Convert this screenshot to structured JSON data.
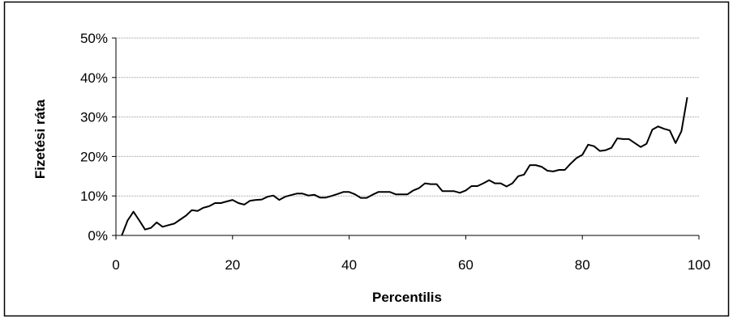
{
  "chart_data": {
    "type": "line",
    "title": "",
    "xlabel": "Percentilis",
    "ylabel": "Fizetési ráta",
    "xlim": [
      0,
      100
    ],
    "ylim": [
      0,
      50
    ],
    "x_ticks": [
      "0",
      "20",
      "40",
      "60",
      "80",
      "100"
    ],
    "y_ticks": [
      "0%",
      "10%",
      "20%",
      "30%",
      "40%",
      "50%"
    ],
    "grid": "horizontal dotted",
    "legend": "none",
    "colors": {
      "line": "#000000",
      "grid": "#999999",
      "axis": "#000000",
      "frame": "#000000"
    },
    "series": [
      {
        "x": [
          1,
          2,
          3,
          4,
          5,
          6,
          7,
          8,
          9,
          10,
          11,
          12,
          13,
          14,
          15,
          16,
          17,
          18,
          19,
          20,
          21,
          22,
          23,
          24,
          25,
          26,
          27,
          28,
          29,
          30,
          31,
          32,
          33,
          34,
          35,
          36,
          37,
          38,
          39,
          40,
          41,
          42,
          43,
          44,
          45,
          46,
          47,
          48,
          49,
          50,
          51,
          52,
          53,
          54,
          55,
          56,
          57,
          58,
          59,
          60,
          61,
          62,
          63,
          64,
          65,
          66,
          67,
          68,
          69,
          70,
          71,
          72,
          73,
          74,
          75,
          76,
          77,
          78,
          79,
          80,
          81,
          82,
          83,
          84,
          85,
          86,
          87,
          88,
          89,
          90,
          91,
          92,
          93,
          94,
          95,
          96,
          97,
          98
        ],
        "values": [
          0,
          3.8,
          6,
          3.8,
          1.5,
          1.9,
          3.3,
          2.2,
          2.6,
          3,
          4,
          5,
          6.4,
          6.2,
          7,
          7.4,
          8.2,
          8.2,
          8.6,
          9,
          8.2,
          7.8,
          8.8,
          9,
          9.1,
          9.8,
          10.1,
          9,
          9.8,
          10.2,
          10.6,
          10.6,
          10.1,
          10.3,
          9.6,
          9.6,
          10,
          10.5,
          11,
          11,
          10.4,
          9.5,
          9.5,
          10.3,
          11,
          11,
          11,
          10.4,
          10.4,
          10.4,
          11.4,
          12,
          13.2,
          13,
          13,
          11.2,
          11.2,
          11.2,
          10.8,
          11.4,
          12.5,
          12.5,
          13.2,
          14,
          13.2,
          13.2,
          12.4,
          13.2,
          15,
          15.4,
          17.8,
          17.8,
          17.4,
          16.4,
          16.2,
          16.6,
          16.6,
          18.2,
          19.6,
          20.4,
          23,
          22.6,
          21.4,
          21.6,
          22.2,
          24.6,
          24.4,
          24.4,
          23.4,
          22.4,
          23.2,
          26.8,
          27.6,
          27,
          26.6,
          23.4,
          26.4,
          35
        ]
      }
    ]
  }
}
